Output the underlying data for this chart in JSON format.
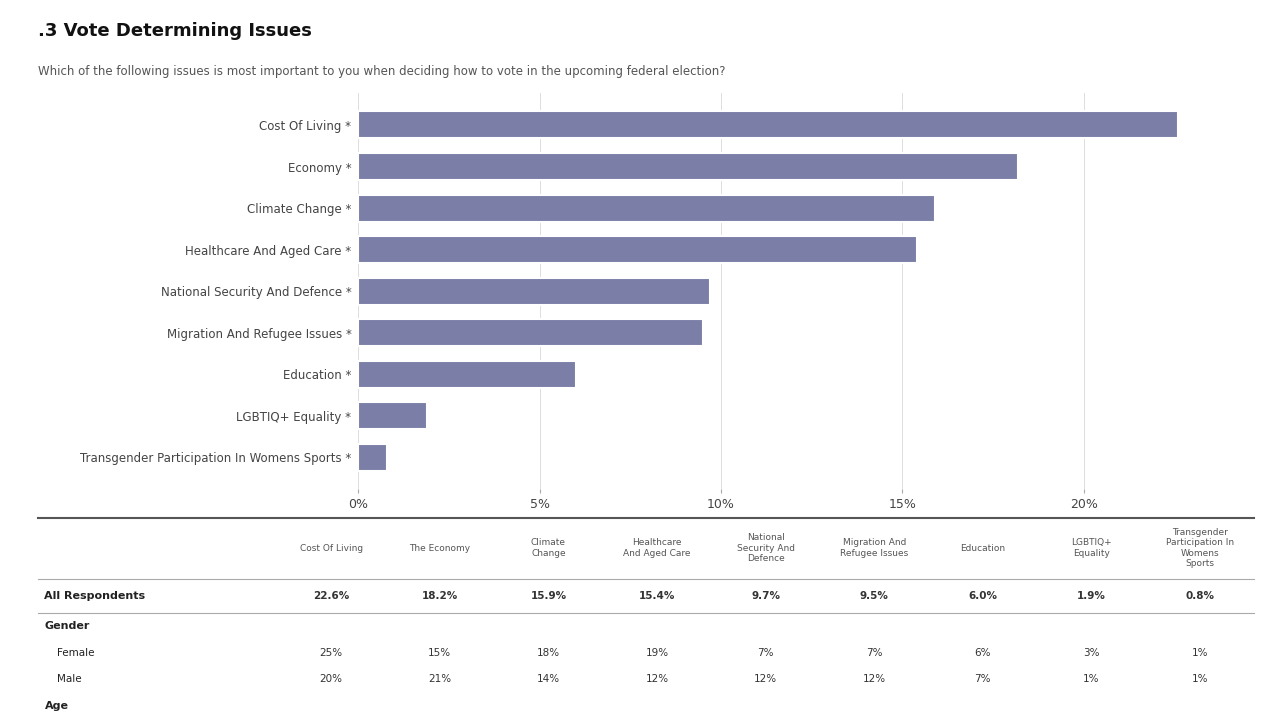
{
  "title": ".3 Vote Determining Issues",
  "subtitle": "Which of the following issues is most important to you when deciding how to vote in the upcoming federal election?",
  "categories": [
    "Cost Of Living",
    "Economy",
    "Climate Change",
    "Healthcare And Aged Care",
    "National Security And Defence",
    "Migration And Refugee Issues",
    "Education",
    "LGBTIQ+ Equality",
    "Transgender Participation In Womens Sports"
  ],
  "values": [
    22.6,
    18.2,
    15.9,
    15.4,
    9.7,
    9.5,
    6.0,
    1.9,
    0.8
  ],
  "bar_color": "#7b7fa8",
  "background_color": "#ffffff",
  "text_color": "#444444",
  "xlim": [
    0,
    24
  ],
  "xticks": [
    0,
    5,
    10,
    15,
    20
  ],
  "xtick_labels": [
    "0%",
    "5%",
    "10%",
    "15%",
    "20%"
  ],
  "table_col_headers": [
    "Cost Of Living",
    "The Economy",
    "Climate\nChange",
    "Healthcare\nAnd Aged Care",
    "National\nSecurity And\nDefence",
    "Migration And\nRefugee Issues",
    "Education",
    "LGBTIQ+\nEquality",
    "Transgender\nParticipation In\nWomens\nSports"
  ],
  "table_row_headers": [
    "",
    "All Respondents",
    "Gender",
    "Female",
    "Male",
    "Age"
  ],
  "table_bold_rows": [
    1,
    2,
    5
  ],
  "table_indent_rows": [
    3,
    4
  ],
  "table_data": [
    [
      "Cost Of Living",
      "The Economy",
      "Climate\nChange",
      "Healthcare\nAnd Aged Care",
      "National\nSecurity And\nDefence",
      "Migration And\nRefugee Issues",
      "Education",
      "LGBTIQ+\nEquality",
      "Transgender\nParticipation In\nWomens\nSports"
    ],
    [
      "22.6%",
      "18.2%",
      "15.9%",
      "15.4%",
      "9.7%",
      "9.5%",
      "6.0%",
      "1.9%",
      "0.8%"
    ],
    [
      "",
      "",
      "",
      "",
      "",
      "",
      "",
      "",
      ""
    ],
    [
      "25%",
      "15%",
      "18%",
      "19%",
      "7%",
      "7%",
      "6%",
      "3%",
      "1%"
    ],
    [
      "20%",
      "21%",
      "14%",
      "12%",
      "12%",
      "12%",
      "7%",
      "1%",
      "1%"
    ],
    [
      "",
      "",
      "",
      "",
      "",
      "",
      "",
      "",
      ""
    ]
  ]
}
